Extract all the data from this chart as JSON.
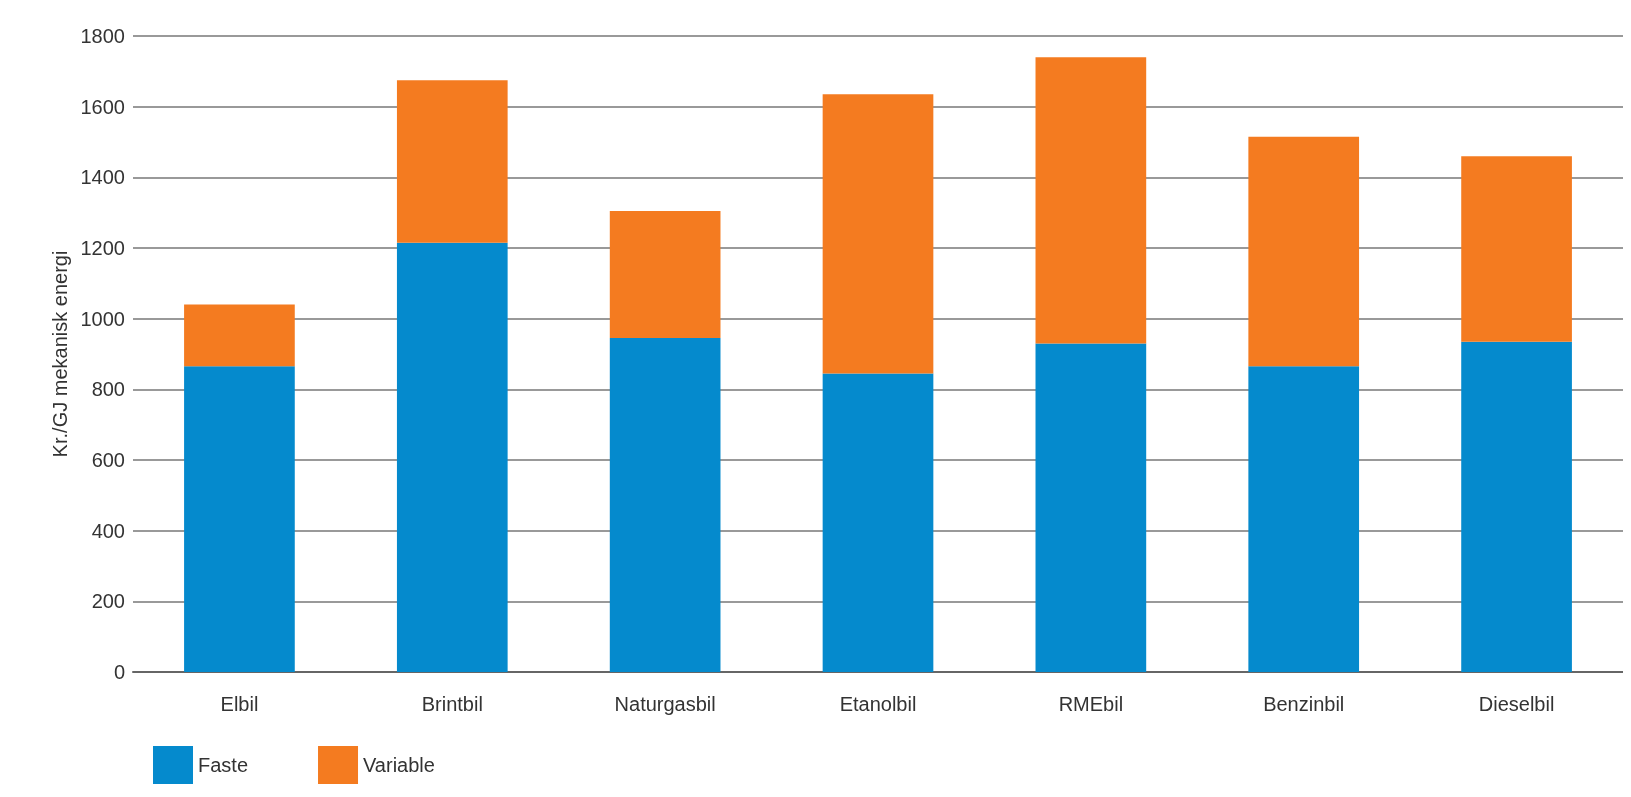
{
  "chart_data": {
    "type": "bar",
    "stacked": true,
    "ylabel": "Kr./GJ mekanisk energi",
    "categories": [
      "Elbil",
      "Brintbil",
      "Naturgasbil",
      "Etanolbil",
      "RMEbil",
      "Benzinbil",
      "Dieselbil"
    ],
    "series": [
      {
        "name": "Faste",
        "color": "#058acd",
        "values": [
          865,
          1215,
          945,
          845,
          930,
          865,
          935
        ]
      },
      {
        "name": "Variable",
        "color": "#f47b20",
        "values": [
          175,
          460,
          360,
          790,
          810,
          650,
          525
        ]
      }
    ],
    "ylim": [
      0,
      1800
    ],
    "yticks": [
      0,
      200,
      400,
      600,
      800,
      1000,
      1200,
      1400,
      1600,
      1800
    ],
    "grid": "y",
    "legend": "bottom left"
  }
}
